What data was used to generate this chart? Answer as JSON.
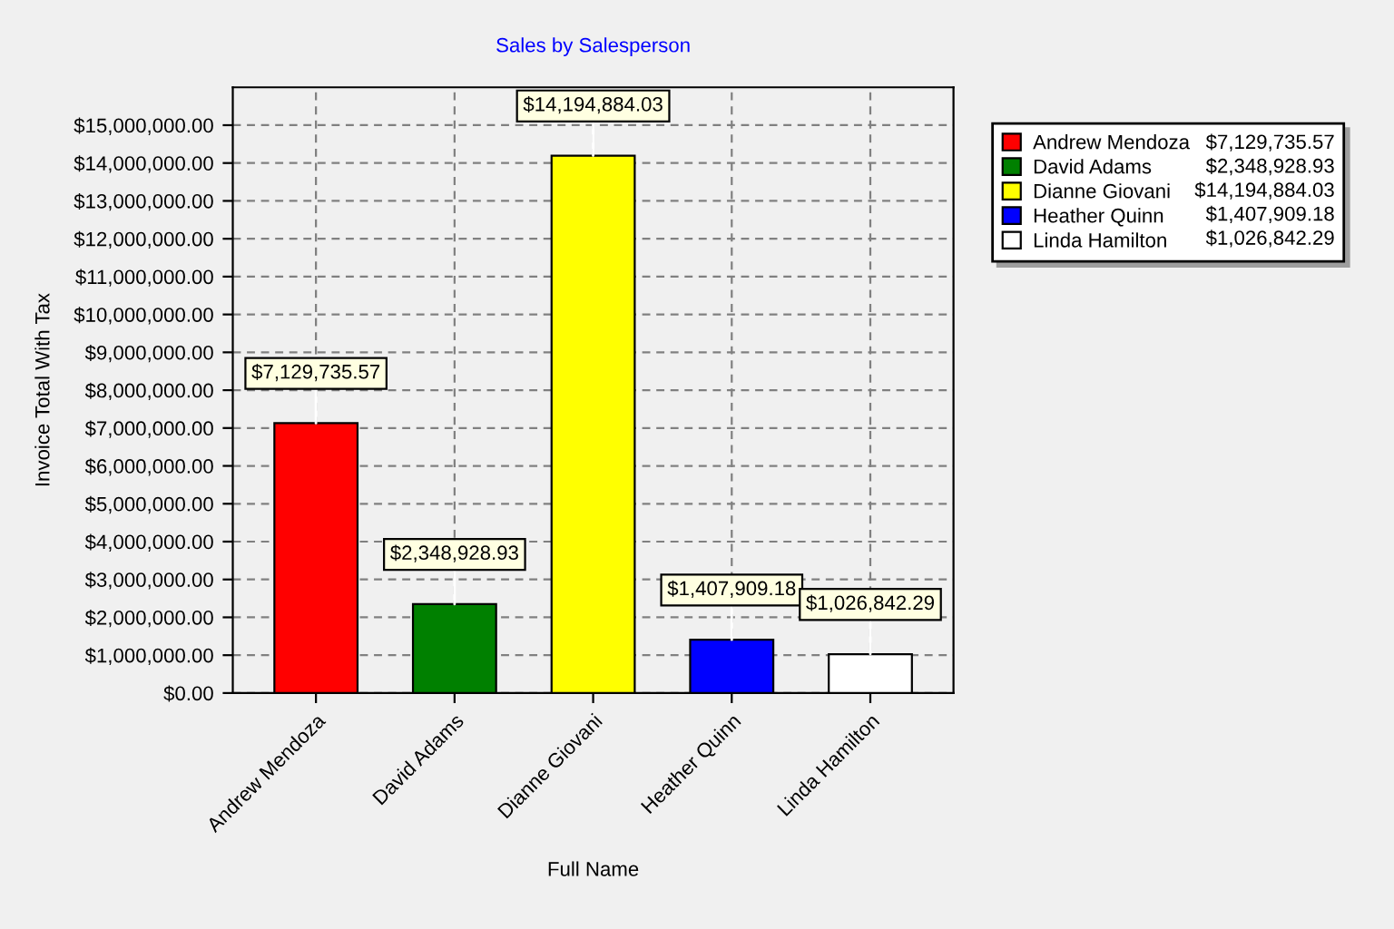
{
  "chart_data": {
    "type": "bar",
    "title": "Sales by Salesperson",
    "xlabel": "Full Name",
    "ylabel": "Invoice Total With Tax",
    "categories": [
      "Andrew Mendoza",
      "David Adams",
      "Dianne Giovani",
      "Heather Quinn",
      "Linda Hamilton"
    ],
    "series": [
      {
        "name": "Andrew Mendoza",
        "color": "#ff0000",
        "values": [
          7129735.57,
          null,
          null,
          null,
          null
        ],
        "value_labels": [
          "$7,129,735.57",
          null,
          null,
          null,
          null
        ]
      },
      {
        "name": "David Adams",
        "color": "#008000",
        "values": [
          null,
          2348928.93,
          null,
          null,
          null
        ],
        "value_labels": [
          null,
          "$2,348,928.93",
          null,
          null,
          null
        ]
      },
      {
        "name": "Dianne Giovani",
        "color": "#ffff00",
        "values": [
          null,
          null,
          14194884.03,
          null,
          null
        ],
        "value_labels": [
          null,
          null,
          "$14,194,884.03",
          null,
          null
        ]
      },
      {
        "name": "Heather Quinn",
        "color": "#0000ff",
        "values": [
          null,
          null,
          null,
          1407909.18,
          null
        ],
        "value_labels": [
          null,
          null,
          null,
          "$1,407,909.18",
          null
        ]
      },
      {
        "name": "Linda Hamilton",
        "color": "#ffffff",
        "values": [
          null,
          null,
          null,
          null,
          1026842.29
        ],
        "value_labels": [
          null,
          null,
          null,
          null,
          "$1,026,842.29"
        ]
      }
    ],
    "ylim": [
      0,
      16000000
    ],
    "yticks": [
      {
        "value": 0,
        "label": "$0.00"
      },
      {
        "value": 1000000,
        "label": "$1,000,000.00"
      },
      {
        "value": 2000000,
        "label": "$2,000,000.00"
      },
      {
        "value": 3000000,
        "label": "$3,000,000.00"
      },
      {
        "value": 4000000,
        "label": "$4,000,000.00"
      },
      {
        "value": 5000000,
        "label": "$5,000,000.00"
      },
      {
        "value": 6000000,
        "label": "$6,000,000.00"
      },
      {
        "value": 7000000,
        "label": "$7,000,000.00"
      },
      {
        "value": 8000000,
        "label": "$8,000,000.00"
      },
      {
        "value": 9000000,
        "label": "$9,000,000.00"
      },
      {
        "value": 10000000,
        "label": "$10,000,000.00"
      },
      {
        "value": 11000000,
        "label": "$11,000,000.00"
      },
      {
        "value": 12000000,
        "label": "$12,000,000.00"
      },
      {
        "value": 13000000,
        "label": "$13,000,000.00"
      },
      {
        "value": 14000000,
        "label": "$14,000,000.00"
      },
      {
        "value": 15000000,
        "label": "$15,000,000.00"
      }
    ],
    "grid": true,
    "legend": "right"
  }
}
